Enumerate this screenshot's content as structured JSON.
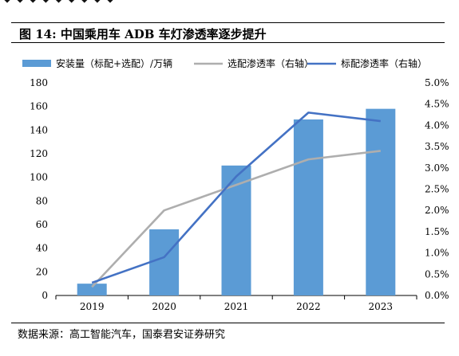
{
  "top_fragment": "◆ ◆ ◆ ◆ ◆ ◆ ◆ ◆ ◆",
  "figure_title": "图 14:  中国乘用车 ADB 车灯渗透率逐步提升",
  "source_note": "数据来源：高工智能汽车，国泰君安证券研究",
  "colors": {
    "bar": "#5B9BD5",
    "line_gray": "#AEAEAE",
    "line_blue": "#4472C4"
  },
  "chart_data": {
    "type": "bar",
    "title": "",
    "categories": [
      "2019",
      "2020",
      "2021",
      "2022",
      "2023"
    ],
    "series": [
      {
        "name": "安装量（标配+选配）/万辆",
        "kind": "bar",
        "axis": "left",
        "values": [
          10,
          56,
          110,
          149,
          158
        ]
      },
      {
        "name": "选配渗透率（右轴）",
        "kind": "line",
        "axis": "right",
        "values": [
          0.2,
          2.0,
          2.6,
          3.2,
          3.4
        ]
      },
      {
        "name": "标配渗透率（右轴）",
        "kind": "line",
        "axis": "right",
        "values": [
          0.3,
          0.9,
          2.8,
          4.3,
          4.1
        ]
      }
    ],
    "y_left": {
      "min": 0,
      "max": 180,
      "step": 20,
      "ticks": [
        "0",
        "20",
        "40",
        "60",
        "80",
        "100",
        "120",
        "140",
        "160",
        "180"
      ]
    },
    "y_right": {
      "min": 0,
      "max": 5,
      "step": 0.5,
      "unit": "%",
      "ticks": [
        "0.0%",
        "0.5%",
        "1.0%",
        "1.5%",
        "2.0%",
        "2.5%",
        "3.0%",
        "3.5%",
        "4.0%",
        "4.5%",
        "5.0%"
      ]
    },
    "legend_position": "top",
    "grid": false
  }
}
